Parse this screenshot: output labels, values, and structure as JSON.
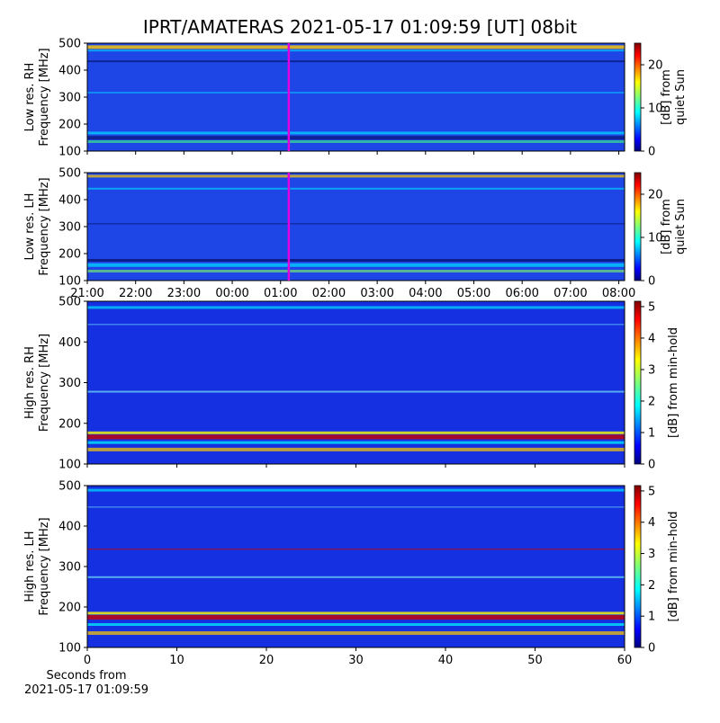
{
  "chart_data": [
    {
      "type": "heatmap",
      "title": "IPRT/AMATERAS 2021-05-17 01:09:59 [UT]   08bit",
      "ylabel": "Low res. RH\nFrequency [MHz]",
      "ylim": [
        100,
        500
      ],
      "yticks": [
        100,
        200,
        300,
        400,
        500
      ],
      "xlim": [
        21,
        32.12
      ],
      "sharex": true,
      "cursor": 25.17,
      "cursor_color": "#e000e0",
      "clim": [
        0,
        25
      ],
      "cticks": [
        0,
        10,
        20
      ],
      "clabel": "[dB] from\nquiet Sun"
    },
    {
      "type": "heatmap",
      "ylabel": "Low res. LH\nFrequency [MHz]",
      "ylim": [
        100,
        500
      ],
      "yticks": [
        100,
        200,
        300,
        400,
        500
      ],
      "xlim": [
        21,
        32.12
      ],
      "xticks": [
        {
          "value": 21,
          "label": "21:00"
        },
        {
          "value": 22,
          "label": "22:00"
        },
        {
          "value": 23,
          "label": "23:00"
        },
        {
          "value": 24,
          "label": "00:00"
        },
        {
          "value": 25,
          "label": "01:00"
        },
        {
          "value": 26,
          "label": "02:00"
        },
        {
          "value": 27,
          "label": "03:00"
        },
        {
          "value": 28,
          "label": "04:00"
        },
        {
          "value": 29,
          "label": "05:00"
        },
        {
          "value": 30,
          "label": "06:00"
        },
        {
          "value": 31,
          "label": "07:00"
        },
        {
          "value": 32,
          "label": "08:00"
        }
      ],
      "cursor": 25.17,
      "cursor_color": "#e000e0",
      "clim": [
        0,
        25
      ],
      "cticks": [
        0,
        10,
        20
      ],
      "clabel": "[dB] from\nquiet Sun"
    },
    {
      "type": "heatmap",
      "ylabel": "High res. RH\nFrequency [MHz]",
      "ylim": [
        100,
        500
      ],
      "yticks": [
        100,
        200,
        300,
        400,
        500
      ],
      "xlim": [
        0,
        60
      ],
      "sharex": true,
      "clim": [
        0,
        5.17
      ],
      "cticks": [
        0,
        1,
        2,
        3,
        4,
        5
      ],
      "clabel": "[dB] from min-hold"
    },
    {
      "type": "heatmap",
      "ylabel": "High res. LH\nFrequency [MHz]",
      "ylim": [
        100,
        500
      ],
      "yticks": [
        100,
        200,
        300,
        400,
        500
      ],
      "xlim": [
        0,
        60
      ],
      "xticks": [
        0,
        10,
        20,
        30,
        40,
        50,
        60
      ],
      "xlabel": "Seconds from\n2021-05-17 01:09:59",
      "clim": [
        0,
        5.17
      ],
      "cticks": [
        0,
        1,
        2,
        3,
        4,
        5
      ],
      "clabel": "[dB] from min-hold"
    }
  ]
}
